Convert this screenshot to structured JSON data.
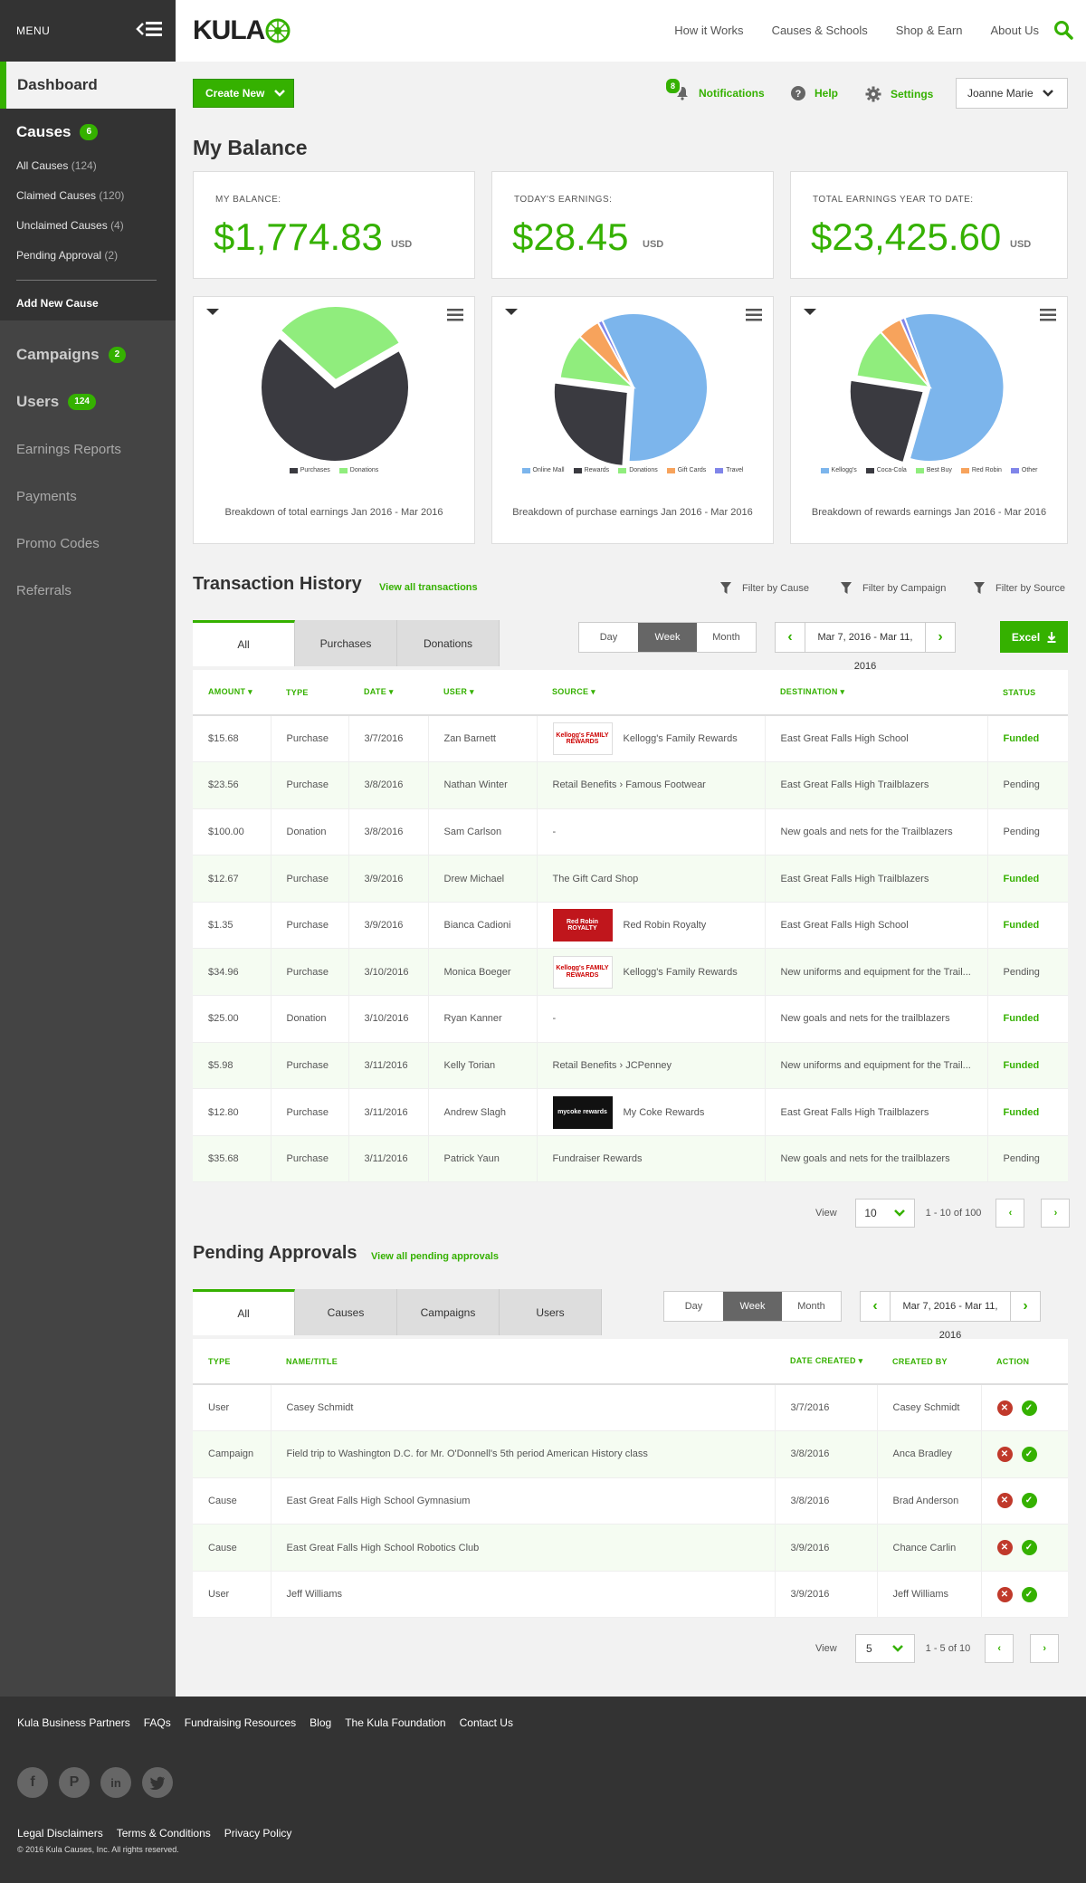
{
  "sidebar": {
    "menu_label": "MENU",
    "dashboard": "Dashboard",
    "causes": {
      "label": "Causes",
      "badge": "6",
      "items": [
        {
          "label": "All Causes",
          "count": "(124)"
        },
        {
          "label": "Claimed Causes",
          "count": "(120)"
        },
        {
          "label": "Unclaimed Causes",
          "count": "(4)"
        },
        {
          "label": "Pending Approval",
          "count": "(2)"
        }
      ],
      "add": "Add New Cause"
    },
    "campaigns": {
      "label": "Campaigns",
      "badge": "2"
    },
    "users": {
      "label": "Users",
      "badge": "124"
    },
    "nav": [
      "Earnings Reports",
      "Payments",
      "Promo Codes",
      "Referrals"
    ]
  },
  "header": {
    "logo": "KULA",
    "nav": [
      "How it Works",
      "Causes & Schools",
      "Shop & Earn",
      "About Us"
    ]
  },
  "actions": {
    "create": "Create New",
    "notifications": "Notifications",
    "notif_count": "8",
    "help": "Help",
    "settings": "Settings",
    "user": "Joanne Marie"
  },
  "balance": {
    "title": "My Balance",
    "cards": [
      {
        "label": "MY BALANCE:",
        "value": "$1,774.83",
        "unit": "USD"
      },
      {
        "label": "TODAY'S EARNINGS:",
        "value": "$28.45",
        "unit": "USD"
      },
      {
        "label": "TOTAL EARNINGS YEAR TO DATE:",
        "value": "$23,425.60",
        "unit": "USD"
      }
    ]
  },
  "chart_data": [
    {
      "type": "pie",
      "caption": "Breakdown of total earnings Jan 2016 - Mar 2016",
      "slices": [
        {
          "name": "Purchases",
          "value": 70,
          "color": "#3a3a40"
        },
        {
          "name": "Donations",
          "value": 30,
          "color": "#90ed7d"
        }
      ]
    },
    {
      "type": "pie",
      "caption": "Breakdown of purchase earnings Jan 2016 - Mar 2016",
      "slices": [
        {
          "name": "Online Mall",
          "value": 58,
          "color": "#7cb5ec"
        },
        {
          "name": "Rewards",
          "value": 26,
          "color": "#3a3a40"
        },
        {
          "name": "Donations",
          "value": 10,
          "color": "#90ed7d"
        },
        {
          "name": "Gift Cards",
          "value": 5,
          "color": "#f7a35c"
        },
        {
          "name": "Travel",
          "value": 1,
          "color": "#8085e9"
        }
      ]
    },
    {
      "type": "pie",
      "caption": "Breakdown of rewards earnings Jan 2016 - Mar 2016",
      "slices": [
        {
          "name": "Kellogg's",
          "value": 60,
          "color": "#7cb5ec"
        },
        {
          "name": "Coca-Cola",
          "value": 23,
          "color": "#3a3a40"
        },
        {
          "name": "Best Buy",
          "value": 11,
          "color": "#90ed7d"
        },
        {
          "name": "Red Robin",
          "value": 5,
          "color": "#f7a35c"
        },
        {
          "name": "Other",
          "value": 1,
          "color": "#8085e9"
        }
      ]
    }
  ],
  "transactions": {
    "title": "Transaction History",
    "link": "View all transactions",
    "filters": [
      "Filter by Cause",
      "Filter by Campaign",
      "Filter by Source"
    ],
    "tabs": [
      "All",
      "Purchases",
      "Donations"
    ],
    "periods": [
      "Day",
      "Week",
      "Month"
    ],
    "date_range": "Mar 7, 2016 - Mar 11, 2016",
    "excel": "Excel",
    "columns": [
      "AMOUNT",
      "TYPE",
      "DATE",
      "USER",
      "SOURCE",
      "DESTINATION",
      "STATUS"
    ],
    "rows": [
      {
        "amount": "$15.68",
        "type": "Purchase",
        "date": "3/7/2016",
        "user": "Zan Barnett",
        "logo": "kelloggs",
        "logo_text": "Kellogg's FAMILY REWARDS",
        "source": "Kellogg's Family Rewards",
        "dest": "East Great Falls High School",
        "status": "Funded"
      },
      {
        "amount": "$23.56",
        "type": "Purchase",
        "date": "3/8/2016",
        "user": "Nathan Winter",
        "logo": "",
        "logo_text": "",
        "source": "Retail Benefits  ›  Famous Footwear",
        "dest": "East Great Falls High Trailblazers",
        "status": "Pending"
      },
      {
        "amount": "$100.00",
        "type": "Donation",
        "date": "3/8/2016",
        "user": "Sam Carlson",
        "logo": "",
        "logo_text": "",
        "source": "-",
        "dest": "New goals and nets for the Trailblazers",
        "status": "Pending"
      },
      {
        "amount": "$12.67",
        "type": "Purchase",
        "date": "3/9/2016",
        "user": "Drew Michael",
        "logo": "",
        "logo_text": "",
        "source": "The Gift Card Shop",
        "dest": "East Great Falls High Trailblazers",
        "status": "Funded"
      },
      {
        "amount": "$1.35",
        "type": "Purchase",
        "date": "3/9/2016",
        "user": "Bianca Cadioni",
        "logo": "redrobin",
        "logo_text": "Red Robin ROYALTY",
        "source": "Red Robin Royalty",
        "dest": "East Great Falls High School",
        "status": "Funded"
      },
      {
        "amount": "$34.96",
        "type": "Purchase",
        "date": "3/10/2016",
        "user": "Monica Boeger",
        "logo": "kelloggs",
        "logo_text": "Kellogg's FAMILY REWARDS",
        "source": "Kellogg's Family Rewards",
        "dest": "New uniforms and equipment for the Trail...",
        "status": "Pending"
      },
      {
        "amount": "$25.00",
        "type": "Donation",
        "date": "3/10/2016",
        "user": "Ryan Kanner",
        "logo": "",
        "logo_text": "",
        "source": "-",
        "dest": "New goals and nets for the trailblazers",
        "status": "Funded"
      },
      {
        "amount": "$5.98",
        "type": "Purchase",
        "date": "3/11/2016",
        "user": "Kelly Torian",
        "logo": "",
        "logo_text": "",
        "source": "Retail Benefits  ›  JCPenney",
        "dest": "New uniforms and equipment for the Trail...",
        "status": "Funded"
      },
      {
        "amount": "$12.80",
        "type": "Purchase",
        "date": "3/11/2016",
        "user": "Andrew Slagh",
        "logo": "coke",
        "logo_text": "mycoke rewards",
        "source": "My Coke Rewards",
        "dest": "East Great Falls High Trailblazers",
        "status": "Funded"
      },
      {
        "amount": "$35.68",
        "type": "Purchase",
        "date": "3/11/2016",
        "user": "Patrick Yaun",
        "logo": "",
        "logo_text": "",
        "source": "Fundraiser Rewards",
        "dest": "New goals and nets for the trailblazers",
        "status": "Pending"
      }
    ],
    "pager": {
      "view": "View",
      "per_page": "10",
      "range": "1 - 10 of 100"
    }
  },
  "pending": {
    "title": "Pending Approvals",
    "link": "View all pending approvals",
    "tabs": [
      "All",
      "Causes",
      "Campaigns",
      "Users"
    ],
    "periods": [
      "Day",
      "Week",
      "Month"
    ],
    "date_range": "Mar 7, 2016 - Mar 11, 2016",
    "columns": [
      "TYPE",
      "NAME/TITLE",
      "DATE CREATED",
      "CREATED BY",
      "ACTION"
    ],
    "rows": [
      {
        "type": "User",
        "name": "Casey Schmidt",
        "date": "3/7/2016",
        "by": "Casey Schmidt"
      },
      {
        "type": "Campaign",
        "name": "Field trip to Washington D.C. for Mr. O'Donnell's 5th period American History class",
        "date": "3/8/2016",
        "by": "Anca Bradley"
      },
      {
        "type": "Cause",
        "name": "East Great Falls High School Gymnasium",
        "date": "3/8/2016",
        "by": "Brad Anderson"
      },
      {
        "type": "Cause",
        "name": "East Great Falls High School Robotics Club",
        "date": "3/9/2016",
        "by": "Chance Carlin"
      },
      {
        "type": "User",
        "name": "Jeff Williams",
        "date": "3/9/2016",
        "by": "Jeff Williams"
      }
    ],
    "pager": {
      "view": "View",
      "per_page": "5",
      "range": "1 - 5 of 10"
    }
  },
  "footer": {
    "links": [
      "Kula Business Partners",
      "FAQs",
      "Fundraising Resources",
      "Blog",
      "The Kula Foundation",
      "Contact Us"
    ],
    "social": [
      "facebook-icon",
      "pinterest-icon",
      "linkedin-icon",
      "twitter-icon"
    ],
    "legal": [
      "Legal Disclaimers",
      "Terms & Conditions",
      "Privacy Policy"
    ],
    "copyright": "© 2016 Kula Causes, Inc. All rights reserved."
  }
}
